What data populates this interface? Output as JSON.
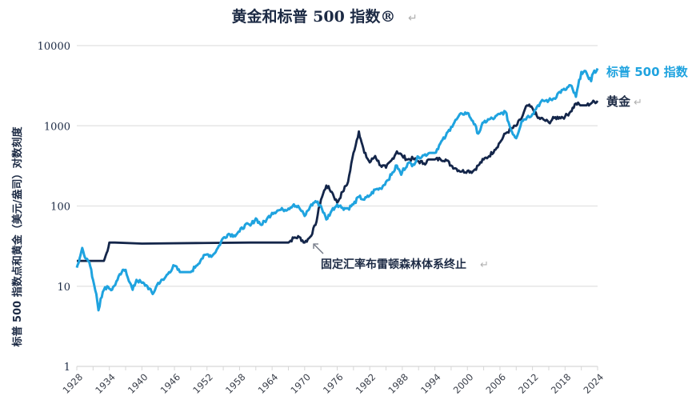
{
  "chart_data": {
    "type": "line",
    "title": "黄金和标普 500 指数®",
    "xlabel": "",
    "ylabel": "标普 500 指数点和黄金（美元/盎司）对数刻度",
    "yscale": "log",
    "ylim": [
      1,
      10000
    ],
    "xlim": [
      1928,
      2024
    ],
    "y_ticks": [
      "1",
      "10",
      "100",
      "1000",
      "10000"
    ],
    "y_tick_values": [
      1,
      10,
      100,
      1000,
      10000
    ],
    "x_ticks": [
      "1928",
      "1934",
      "1940",
      "1946",
      "1952",
      "1958",
      "1964",
      "1970",
      "1976",
      "1982",
      "1988",
      "1994",
      "2000",
      "2006",
      "2012",
      "2018",
      "2024"
    ],
    "grid": "horizontal",
    "series": [
      {
        "name": "标普 500 指数",
        "color": "#1fa3df",
        "x": [
          1928,
          1928.5,
          1929,
          1929.7,
          1930.3,
          1931,
          1931.6,
          1932,
          1932.4,
          1933,
          1933.6,
          1934.5,
          1935.5,
          1936.3,
          1937,
          1937.8,
          1938.3,
          1939,
          1940,
          1941,
          1942,
          1943,
          1944,
          1945,
          1946,
          1947,
          1948,
          1949,
          1950,
          1951,
          1952,
          1953,
          1954,
          1955,
          1956,
          1957,
          1958,
          1959,
          1960,
          1961,
          1962,
          1963,
          1964,
          1965,
          1966,
          1967,
          1968,
          1969,
          1970,
          1971,
          1972,
          1973,
          1974,
          1975,
          1976,
          1977,
          1978,
          1979,
          1980,
          1981,
          1982,
          1983,
          1984,
          1985,
          1986,
          1987,
          1987.8,
          1988,
          1989,
          1990,
          1991,
          1992,
          1993,
          1994,
          1995,
          1996,
          1997,
          1998,
          1999,
          2000,
          2001,
          2002,
          2003,
          2004,
          2005,
          2006,
          2007,
          2008,
          2009,
          2010,
          2011,
          2012,
          2013,
          2014,
          2015,
          2016,
          2017,
          2018,
          2019,
          2020,
          2021,
          2022,
          2022.8,
          2023,
          2024
        ],
        "values": [
          17,
          22,
          30,
          22,
          20,
          12,
          8,
          5,
          7,
          9,
          10,
          9,
          12,
          15,
          16,
          11,
          9,
          12,
          11,
          10,
          8,
          11,
          12,
          15,
          18,
          15,
          15,
          15,
          18,
          22,
          25,
          24,
          30,
          40,
          45,
          43,
          48,
          58,
          57,
          70,
          58,
          68,
          82,
          88,
          90,
          93,
          105,
          95,
          75,
          98,
          115,
          100,
          68,
          88,
          105,
          95,
          93,
          105,
          130,
          120,
          135,
          160,
          165,
          200,
          245,
          320,
          245,
          270,
          340,
          330,
          410,
          430,
          460,
          460,
          600,
          740,
          970,
          1200,
          1420,
          1450,
          1150,
          800,
          1100,
          1200,
          1250,
          1400,
          1500,
          900,
          700,
          1150,
          1280,
          1400,
          1800,
          2050,
          2070,
          2200,
          2650,
          2800,
          3200,
          2300,
          4700,
          4500,
          3600,
          4300,
          5200
        ]
      },
      {
        "name": "黄金",
        "color": "#14264a",
        "x": [
          1928,
          1933,
          1933.5,
          1934,
          1935,
          1940,
          1950,
          1960,
          1967,
          1968,
          1969,
          1970,
          1971,
          1972,
          1973,
          1974,
          1975,
          1976,
          1977,
          1978,
          1979,
          1980,
          1980.5,
          1981,
          1982,
          1983,
          1984,
          1985,
          1986,
          1987,
          1988,
          1989,
          1990,
          1991,
          1992,
          1993,
          1994,
          1995,
          1996,
          1997,
          1998,
          1999,
          2000,
          2001,
          2002,
          2003,
          2004,
          2005,
          2006,
          2007,
          2008,
          2009,
          2010,
          2011,
          2012,
          2013,
          2014,
          2015,
          2016,
          2017,
          2018,
          2019,
          2020,
          2021,
          2022,
          2023,
          2024
        ],
        "values": [
          20.67,
          20.67,
          26,
          35,
          35,
          34,
          34.5,
          35,
          35,
          40,
          41,
          35,
          41,
          58,
          120,
          180,
          150,
          110,
          150,
          200,
          460,
          850,
          620,
          460,
          350,
          420,
          320,
          300,
          370,
          480,
          420,
          380,
          390,
          360,
          340,
          380,
          380,
          385,
          380,
          320,
          290,
          270,
          275,
          270,
          320,
          380,
          420,
          500,
          620,
          800,
          900,
          1000,
          1250,
          1800,
          1650,
          1250,
          1200,
          1100,
          1250,
          1280,
          1300,
          1500,
          1900,
          1800,
          1800,
          1950,
          2050
        ]
      }
    ],
    "legend": [
      {
        "label": "标普 500 指数",
        "placement": "right"
      },
      {
        "label": "黄金",
        "placement": "right"
      }
    ],
    "annotations": [
      {
        "text": "固定汇率布雷顿森林体系终止",
        "x": 1971
      }
    ]
  }
}
